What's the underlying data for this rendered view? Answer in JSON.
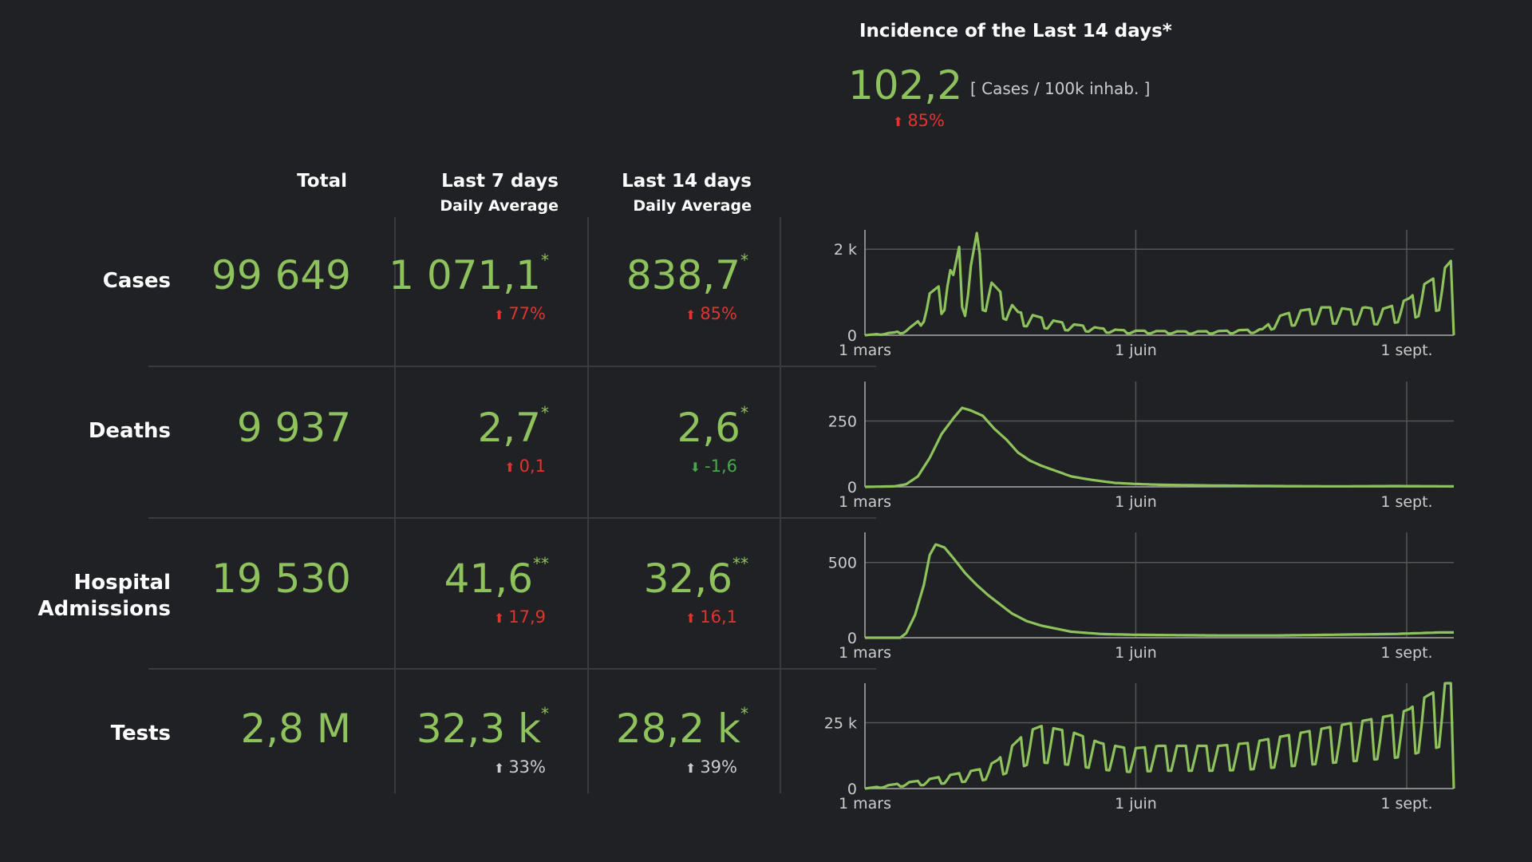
{
  "incidence": {
    "title": "Incidence of the Last 14 days*",
    "value": "102,2",
    "unit": "[ Cases / 100k inhab. ]",
    "change_arrow": "⬆",
    "change": "85%"
  },
  "headers": {
    "total": "Total",
    "last7": "Last 7 days",
    "last7_sub": "Daily Average",
    "last14": "Last 14 days",
    "last14_sub": "Daily Average"
  },
  "rows": [
    {
      "label": "Cases",
      "total": "99 649",
      "avg7": "1 071,1",
      "avg7_mark": "*",
      "avg7_arrow": "⬆",
      "avg7_change": "77%",
      "avg14": "838,7",
      "avg14_mark": "*",
      "avg14_arrow": "⬆",
      "avg14_change": "85%"
    },
    {
      "label": "Deaths",
      "total": "9 937",
      "avg7": "2,7",
      "avg7_mark": "*",
      "avg7_arrow": "⬆",
      "avg7_change": "0,1",
      "avg14": "2,6",
      "avg14_mark": "*",
      "avg14_arrow": "⬇",
      "avg14_change": "-1,6"
    },
    {
      "label_line1": "Hospital",
      "label_line2": "Admissions",
      "total": "19 530",
      "avg7": "41,6",
      "avg7_mark": "**",
      "avg7_arrow": "⬆",
      "avg7_change": "17,9",
      "avg14": "32,6",
      "avg14_mark": "**",
      "avg14_arrow": "⬆",
      "avg14_change": "16,1"
    },
    {
      "label": "Tests",
      "total": "2,8 M",
      "avg7": "32,3 k",
      "avg7_mark": "*",
      "avg7_arrow": "⬆",
      "avg7_change": "33%",
      "avg14": "28,2 k",
      "avg14_mark": "*",
      "avg14_arrow": "⬆",
      "avg14_change": "39%"
    }
  ],
  "colors": {
    "background": "#202124",
    "value_green": "#8dc25c",
    "increase_red": "#e0342f",
    "decrease_green": "#49a84d",
    "neutral_grey": "#cccccc",
    "grid": "#555555"
  },
  "chart_data": [
    {
      "type": "line",
      "name": "cases",
      "xlabels": [
        "1 mars",
        "1 juin",
        "1 sept."
      ],
      "xlabel_days": [
        0,
        92,
        184
      ],
      "yticks": [
        {
          "v": 0,
          "label": "0"
        },
        {
          "v": 2000,
          "label": "2 k"
        }
      ],
      "ylim": [
        0,
        2450
      ],
      "anchors": [
        [
          0,
          0
        ],
        [
          10,
          60
        ],
        [
          15,
          150
        ],
        [
          18,
          300
        ],
        [
          20,
          700
        ],
        [
          22,
          900
        ],
        [
          24,
          1000
        ],
        [
          26,
          1100
        ],
        [
          28,
          1500
        ],
        [
          30,
          1300
        ],
        [
          32,
          1900
        ],
        [
          34,
          1000
        ],
        [
          36,
          1500
        ],
        [
          38,
          2200
        ],
        [
          40,
          1300
        ],
        [
          42,
          1200
        ],
        [
          45,
          1000
        ],
        [
          48,
          800
        ],
        [
          52,
          500
        ],
        [
          56,
          450
        ],
        [
          60,
          380
        ],
        [
          65,
          300
        ],
        [
          70,
          240
        ],
        [
          75,
          200
        ],
        [
          80,
          150
        ],
        [
          85,
          120
        ],
        [
          90,
          100
        ],
        [
          100,
          90
        ],
        [
          110,
          80
        ],
        [
          120,
          90
        ],
        [
          135,
          130
        ],
        [
          140,
          400
        ],
        [
          145,
          500
        ],
        [
          150,
          550
        ],
        [
          155,
          600
        ],
        [
          160,
          600
        ],
        [
          165,
          550
        ],
        [
          170,
          600
        ],
        [
          175,
          550
        ],
        [
          180,
          650
        ],
        [
          185,
          800
        ],
        [
          190,
          1100
        ],
        [
          195,
          1300
        ],
        [
          199,
          1600
        ],
        [
          200,
          0
        ]
      ],
      "weekly_pattern": true
    },
    {
      "type": "line",
      "name": "deaths",
      "xlabels": [
        "1 mars",
        "1 juin",
        "1 sept."
      ],
      "xlabel_days": [
        0,
        92,
        184
      ],
      "yticks": [
        {
          "v": 0,
          "label": "0"
        },
        {
          "v": 250,
          "label": "250"
        }
      ],
      "ylim": [
        0,
        400
      ],
      "anchors": [
        [
          0,
          0
        ],
        [
          10,
          2
        ],
        [
          14,
          10
        ],
        [
          18,
          40
        ],
        [
          22,
          110
        ],
        [
          26,
          200
        ],
        [
          30,
          260
        ],
        [
          33,
          300
        ],
        [
          36,
          290
        ],
        [
          40,
          270
        ],
        [
          44,
          220
        ],
        [
          48,
          180
        ],
        [
          52,
          130
        ],
        [
          56,
          100
        ],
        [
          60,
          80
        ],
        [
          65,
          60
        ],
        [
          70,
          40
        ],
        [
          75,
          30
        ],
        [
          80,
          22
        ],
        [
          85,
          15
        ],
        [
          90,
          12
        ],
        [
          100,
          8
        ],
        [
          120,
          5
        ],
        [
          140,
          3
        ],
        [
          160,
          2
        ],
        [
          180,
          3
        ],
        [
          200,
          2
        ]
      ],
      "weekly_pattern": false
    },
    {
      "type": "line",
      "name": "hospital_admissions",
      "xlabels": [
        "1 mars",
        "1 juin",
        "1 sept."
      ],
      "xlabel_days": [
        0,
        92,
        184
      ],
      "yticks": [
        {
          "v": 0,
          "label": "0"
        },
        {
          "v": 500,
          "label": "500"
        }
      ],
      "ylim": [
        0,
        700
      ],
      "anchors": [
        [
          0,
          0
        ],
        [
          12,
          0
        ],
        [
          14,
          30
        ],
        [
          17,
          150
        ],
        [
          20,
          350
        ],
        [
          22,
          550
        ],
        [
          24,
          620
        ],
        [
          27,
          600
        ],
        [
          30,
          530
        ],
        [
          34,
          430
        ],
        [
          38,
          350
        ],
        [
          42,
          280
        ],
        [
          46,
          220
        ],
        [
          50,
          160
        ],
        [
          55,
          110
        ],
        [
          60,
          80
        ],
        [
          65,
          60
        ],
        [
          70,
          40
        ],
        [
          80,
          25
        ],
        [
          90,
          20
        ],
        [
          100,
          18
        ],
        [
          120,
          15
        ],
        [
          140,
          15
        ],
        [
          160,
          20
        ],
        [
          180,
          25
        ],
        [
          195,
          35
        ],
        [
          200,
          35
        ]
      ],
      "weekly_pattern": false
    },
    {
      "type": "line",
      "name": "tests",
      "xlabels": [
        "1 mars",
        "1 juin",
        "1 sept."
      ],
      "xlabel_days": [
        0,
        92,
        184
      ],
      "yticks": [
        {
          "v": 0,
          "label": "0"
        },
        {
          "v": 25000,
          "label": "25 k"
        }
      ],
      "ylim": [
        0,
        40000
      ],
      "anchors": [
        [
          0,
          0
        ],
        [
          10,
          1500
        ],
        [
          20,
          3000
        ],
        [
          30,
          5000
        ],
        [
          40,
          7000
        ],
        [
          45,
          10000
        ],
        [
          50,
          15000
        ],
        [
          55,
          20000
        ],
        [
          60,
          22000
        ],
        [
          65,
          21000
        ],
        [
          70,
          20000
        ],
        [
          75,
          18000
        ],
        [
          80,
          16000
        ],
        [
          90,
          14000
        ],
        [
          100,
          15000
        ],
        [
          110,
          15000
        ],
        [
          120,
          15000
        ],
        [
          130,
          16000
        ],
        [
          140,
          18000
        ],
        [
          150,
          20000
        ],
        [
          160,
          22000
        ],
        [
          170,
          24000
        ],
        [
          180,
          26000
        ],
        [
          185,
          28000
        ],
        [
          190,
          32000
        ],
        [
          195,
          35000
        ],
        [
          198,
          38000
        ],
        [
          199,
          40000
        ],
        [
          200,
          0
        ]
      ],
      "weekly_pattern": true
    }
  ]
}
